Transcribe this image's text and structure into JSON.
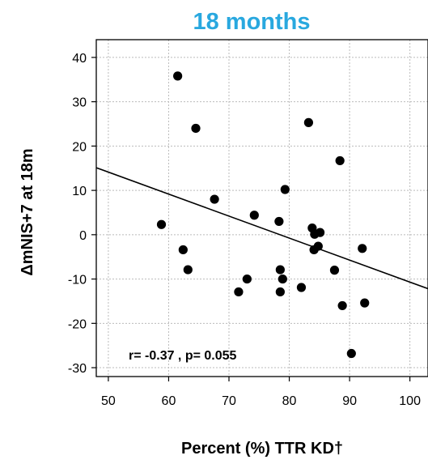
{
  "chart_data": {
    "type": "scatter",
    "title": "18 months",
    "title_color": "#29A8DF",
    "xlabel": "Percent (%) TTR KD†",
    "ylabel": "ΔmNIS+7 at 18m",
    "xlim": [
      48,
      103
    ],
    "ylim": [
      -32,
      44
    ],
    "xticks": [
      50,
      60,
      70,
      80,
      90,
      100
    ],
    "yticks": [
      -30,
      -20,
      -10,
      0,
      10,
      20,
      30,
      40
    ],
    "grid": true,
    "annotation": "r= -0.37 , p= 0.055",
    "regression": {
      "intercept": 38.94,
      "slope": -0.4963
    },
    "points": [
      {
        "x": 61.5,
        "y": 35.8
      },
      {
        "x": 64.5,
        "y": 24.0
      },
      {
        "x": 58.8,
        "y": 2.3
      },
      {
        "x": 62.4,
        "y": -3.4
      },
      {
        "x": 63.2,
        "y": -7.9
      },
      {
        "x": 67.6,
        "y": 8.0
      },
      {
        "x": 71.6,
        "y": -12.9
      },
      {
        "x": 73.0,
        "y": -10.0
      },
      {
        "x": 74.2,
        "y": 4.4
      },
      {
        "x": 78.3,
        "y": 3.0
      },
      {
        "x": 78.5,
        "y": -7.9
      },
      {
        "x": 78.5,
        "y": -12.9
      },
      {
        "x": 78.9,
        "y": -10.0
      },
      {
        "x": 79.3,
        "y": 10.2
      },
      {
        "x": 82.0,
        "y": -11.9
      },
      {
        "x": 83.2,
        "y": 25.3
      },
      {
        "x": 83.8,
        "y": 1.5
      },
      {
        "x": 84.1,
        "y": -3.4
      },
      {
        "x": 84.2,
        "y": 0.1
      },
      {
        "x": 84.8,
        "y": -2.6
      },
      {
        "x": 85.1,
        "y": 0.5
      },
      {
        "x": 87.5,
        "y": -8.0
      },
      {
        "x": 88.4,
        "y": 16.7
      },
      {
        "x": 88.8,
        "y": -16.0
      },
      {
        "x": 90.3,
        "y": -26.8
      },
      {
        "x": 92.1,
        "y": -3.1
      },
      {
        "x": 92.5,
        "y": -15.4
      }
    ]
  }
}
